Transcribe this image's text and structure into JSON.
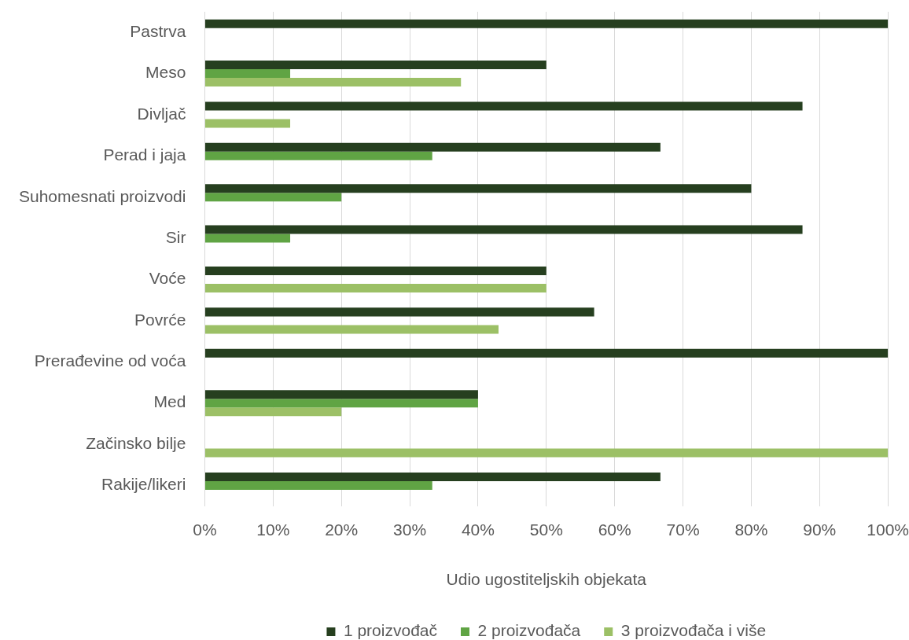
{
  "chart_data": {
    "type": "bar",
    "orientation": "horizontal",
    "categories": [
      "Pastrva",
      "Meso",
      "Divljač",
      "Perad i jaja",
      "Suhomesnati proizvodi",
      "Sir",
      "Voće",
      "Povrće",
      "Prerađevine od voća",
      "Med",
      "Začinsko bilje",
      "Rakije/likeri"
    ],
    "series": [
      {
        "name": "1 proizvođač",
        "color": "#263f1f",
        "values": [
          100,
          50,
          87.5,
          66.7,
          80,
          87.5,
          50,
          57,
          100,
          40,
          null,
          66.7
        ]
      },
      {
        "name": "2 proizvođača",
        "color": "#60a444",
        "values": [
          null,
          12.5,
          null,
          33.3,
          20,
          12.5,
          null,
          null,
          null,
          40,
          null,
          33.3
        ]
      },
      {
        "name": "3 proizvođača i više",
        "color": "#9cc066",
        "values": [
          null,
          37.5,
          12.5,
          null,
          null,
          null,
          50,
          43,
          null,
          20,
          100,
          null
        ]
      }
    ],
    "xlabel": "Udio ugostiteljskih objekata",
    "xlim": [
      0,
      100
    ],
    "xticks": [
      {
        "value": 0,
        "label": "0%"
      },
      {
        "value": 10,
        "label": "10%"
      },
      {
        "value": 20,
        "label": "20%"
      },
      {
        "value": 30,
        "label": "30%"
      },
      {
        "value": 40,
        "label": "40%"
      },
      {
        "value": 50,
        "label": "50%"
      },
      {
        "value": 60,
        "label": "60%"
      },
      {
        "value": 70,
        "label": "70%"
      },
      {
        "value": 80,
        "label": "80%"
      },
      {
        "value": 90,
        "label": "90%"
      },
      {
        "value": 100,
        "label": "100%"
      }
    ],
    "grid": "x",
    "legend": "bottom"
  }
}
